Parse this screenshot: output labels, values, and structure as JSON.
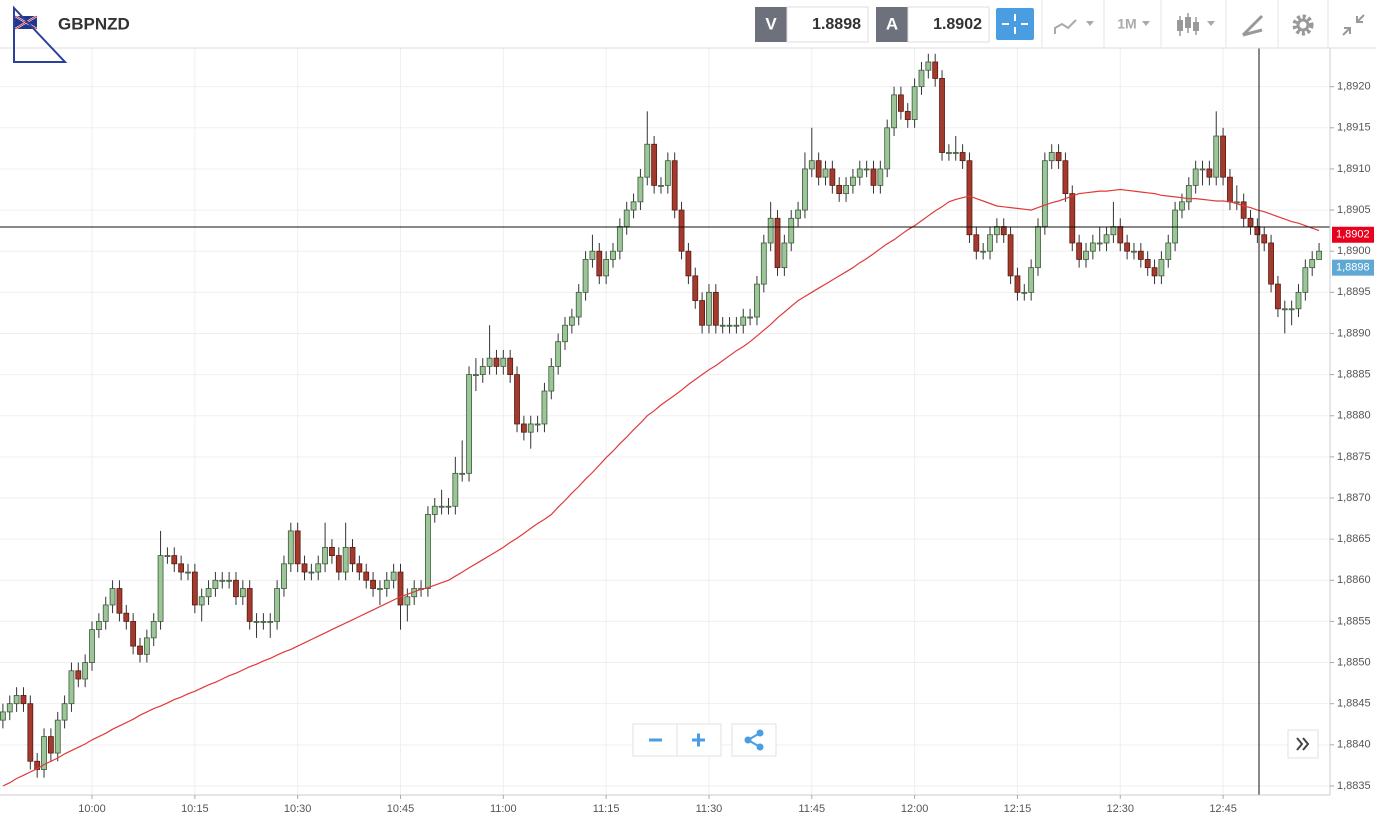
{
  "header": {
    "symbol": "GBPNZD",
    "bid_tag": "V",
    "bid": 1.8898,
    "ask_tag": "A",
    "ask": 1.8902,
    "interval": "1M"
  },
  "chart_data": {
    "type": "candlestick",
    "categories": [
      null,
      null,
      null,
      null,
      null,
      null,
      null,
      null,
      null,
      null,
      null,
      null,
      null,
      "10:00",
      null,
      null,
      null,
      null,
      null,
      null,
      null,
      null,
      null,
      null,
      null,
      null,
      null,
      null,
      "10:15",
      null,
      null,
      null,
      null,
      null,
      null,
      null,
      null,
      null,
      null,
      null,
      null,
      null,
      null,
      "10:30",
      null,
      null,
      null,
      null,
      null,
      null,
      null,
      null,
      null,
      null,
      null,
      null,
      null,
      null,
      "10:45",
      null,
      null,
      null,
      null,
      null,
      null,
      null,
      null,
      null,
      null,
      null,
      null,
      null,
      null,
      "11:00",
      null,
      null,
      null,
      null,
      null,
      null,
      null,
      null,
      null,
      null,
      null,
      null,
      null,
      null,
      "11:15",
      null,
      null,
      null,
      null,
      null,
      null,
      null,
      null,
      null,
      null,
      null,
      null,
      null,
      null,
      "11:30",
      null,
      null,
      null,
      null,
      null,
      null,
      null,
      null,
      null,
      null,
      null,
      null,
      null,
      null,
      "11:45",
      null,
      null,
      null,
      null,
      null,
      null,
      null,
      null,
      null,
      null,
      null,
      null,
      null,
      null,
      "12:00",
      null,
      null,
      null,
      null,
      null,
      null,
      null,
      null,
      null,
      null,
      null,
      null,
      null,
      null,
      "12:15",
      null,
      null,
      null,
      null,
      null,
      null,
      null,
      null,
      null,
      null,
      null,
      null,
      null,
      null,
      "12:30",
      null,
      null,
      null,
      null,
      null,
      null,
      null,
      null,
      null,
      null,
      null,
      null,
      null,
      null,
      "12:45",
      null,
      null,
      null,
      null,
      null,
      null,
      null,
      null,
      null,
      null,
      null,
      null,
      null,
      null
    ],
    "open": [
      1.8843,
      1.8844,
      1.8845,
      1.8846,
      1.8845,
      1.8838,
      1.8837,
      1.8841,
      1.8839,
      1.8843,
      1.8845,
      1.8849,
      1.8848,
      1.885,
      1.8854,
      1.8855,
      1.8857,
      1.8859,
      1.8856,
      1.8855,
      1.8852,
      1.8851,
      1.8853,
      1.8855,
      1.8863,
      1.8863,
      1.8862,
      1.8861,
      1.8861,
      1.8857,
      1.8858,
      1.8859,
      1.886,
      1.886,
      1.886,
      1.8858,
      1.8859,
      1.8855,
      1.8855,
      1.8855,
      1.8855,
      1.8859,
      1.8862,
      1.8866,
      1.8862,
      1.8861,
      1.8861,
      1.8862,
      1.8864,
      1.8863,
      1.8861,
      1.8864,
      1.8862,
      1.8861,
      1.886,
      1.8859,
      1.8859,
      1.886,
      1.8861,
      1.8857,
      1.8858,
      1.8859,
      1.8859,
      1.8868,
      1.8869,
      1.8869,
      1.8869,
      1.8873,
      1.8873,
      1.8885,
      1.8885,
      1.8886,
      1.8887,
      1.8886,
      1.8887,
      1.8885,
      1.8879,
      1.8878,
      1.8879,
      1.8879,
      1.8883,
      1.8886,
      1.8889,
      1.8891,
      1.8892,
      1.8895,
      1.8899,
      1.89,
      1.8897,
      1.8899,
      1.89,
      1.8903,
      1.8905,
      1.8906,
      1.8909,
      1.8913,
      1.8908,
      1.8908,
      1.8911,
      1.8905,
      1.89,
      1.8897,
      1.8894,
      1.8891,
      1.8895,
      1.8891,
      1.8891,
      1.8891,
      1.8891,
      1.8892,
      1.8892,
      1.8896,
      1.8901,
      1.8904,
      1.8898,
      1.8901,
      1.8904,
      1.8905,
      1.891,
      1.8911,
      1.8909,
      1.891,
      1.8908,
      1.8907,
      1.8908,
      1.8909,
      1.891,
      1.891,
      1.8908,
      1.891,
      1.8915,
      1.8919,
      1.8917,
      1.8916,
      1.892,
      1.8922,
      1.8923,
      1.8921,
      1.8912,
      1.8912,
      1.8912,
      1.8911,
      1.8902,
      1.89,
      1.89,
      1.8902,
      1.8903,
      1.8902,
      1.8897,
      1.8895,
      1.8895,
      1.8898,
      1.8903,
      1.8911,
      1.8912,
      1.8911,
      1.8907,
      1.8901,
      1.8899,
      1.89,
      1.8901,
      1.8901,
      1.8902,
      1.8903,
      1.8901,
      1.89,
      1.89,
      1.8899,
      1.8898,
      1.8897,
      1.8899,
      1.8901,
      1.8905,
      1.8906,
      1.8908,
      1.891,
      1.891,
      1.8909,
      1.8914,
      1.8909,
      1.8906,
      1.8906,
      1.8904,
      1.8903,
      1.8902,
      1.8901,
      1.8896,
      1.8893,
      1.8893,
      1.8893,
      1.8895,
      1.8898,
      1.8899
    ],
    "close": [
      1.8844,
      1.8845,
      1.8846,
      1.8845,
      1.8838,
      1.8837,
      1.8841,
      1.8839,
      1.8843,
      1.8845,
      1.8849,
      1.8848,
      1.885,
      1.8854,
      1.8855,
      1.8857,
      1.8859,
      1.8856,
      1.8855,
      1.8852,
      1.8851,
      1.8853,
      1.8855,
      1.8863,
      1.8863,
      1.8862,
      1.8861,
      1.8861,
      1.8857,
      1.8858,
      1.8859,
      1.886,
      1.886,
      1.886,
      1.8858,
      1.8859,
      1.8855,
      1.8855,
      1.8855,
      1.8855,
      1.8859,
      1.8862,
      1.8866,
      1.8862,
      1.8861,
      1.8861,
      1.8862,
      1.8864,
      1.8863,
      1.8861,
      1.8864,
      1.8862,
      1.8861,
      1.886,
      1.8859,
      1.8859,
      1.886,
      1.8861,
      1.8857,
      1.8858,
      1.8859,
      1.8859,
      1.8868,
      1.8869,
      1.8869,
      1.8869,
      1.8873,
      1.8873,
      1.8885,
      1.8885,
      1.8886,
      1.8887,
      1.8886,
      1.8887,
      1.8885,
      1.8879,
      1.8878,
      1.8879,
      1.8879,
      1.8883,
      1.8886,
      1.8889,
      1.8891,
      1.8892,
      1.8895,
      1.8899,
      1.89,
      1.8897,
      1.8899,
      1.89,
      1.8903,
      1.8905,
      1.8906,
      1.8909,
      1.8913,
      1.8908,
      1.8908,
      1.8911,
      1.8905,
      1.89,
      1.8897,
      1.8894,
      1.8891,
      1.8895,
      1.8891,
      1.8891,
      1.8891,
      1.8891,
      1.8892,
      1.8892,
      1.8896,
      1.8901,
      1.8904,
      1.8898,
      1.8901,
      1.8904,
      1.8905,
      1.891,
      1.8911,
      1.8909,
      1.891,
      1.8908,
      1.8907,
      1.8908,
      1.8909,
      1.891,
      1.891,
      1.8908,
      1.891,
      1.8915,
      1.8919,
      1.8917,
      1.8916,
      1.892,
      1.8922,
      1.8923,
      1.8921,
      1.8912,
      1.8912,
      1.8912,
      1.8911,
      1.8902,
      1.89,
      1.89,
      1.8902,
      1.8903,
      1.8902,
      1.8897,
      1.8895,
      1.8895,
      1.8898,
      1.8903,
      1.8911,
      1.8912,
      1.8911,
      1.8907,
      1.8901,
      1.8899,
      1.89,
      1.8901,
      1.8901,
      1.8902,
      1.8903,
      1.8901,
      1.89,
      1.89,
      1.8899,
      1.8898,
      1.8897,
      1.8899,
      1.8901,
      1.8905,
      1.8906,
      1.8908,
      1.891,
      1.891,
      1.8909,
      1.8914,
      1.8909,
      1.8906,
      1.8906,
      1.8904,
      1.8903,
      1.8902,
      1.8901,
      1.8896,
      1.8893,
      1.8893,
      1.8893,
      1.8895,
      1.8898,
      1.8899,
      1.89
    ],
    "high": [
      1.8845,
      1.8846,
      1.8847,
      1.8847,
      1.8846,
      1.8839,
      1.8842,
      1.8842,
      1.8844,
      1.8846,
      1.885,
      1.885,
      1.8851,
      1.8855,
      1.8856,
      1.8858,
      1.886,
      1.886,
      1.8857,
      1.8856,
      1.8853,
      1.8854,
      1.8856,
      1.8866,
      1.8864,
      1.8864,
      1.8863,
      1.8862,
      1.8862,
      1.8859,
      1.886,
      1.8861,
      1.8861,
      1.8861,
      1.8861,
      1.886,
      1.886,
      1.8856,
      1.8856,
      1.8856,
      1.886,
      1.8863,
      1.8867,
      1.8867,
      1.8863,
      1.8862,
      1.8863,
      1.8867,
      1.8865,
      1.8864,
      1.8867,
      1.8865,
      1.8863,
      1.8862,
      1.8861,
      1.886,
      1.8861,
      1.8862,
      1.8862,
      1.8859,
      1.886,
      1.886,
      1.8869,
      1.887,
      1.8871,
      1.887,
      1.8875,
      1.8877,
      1.8886,
      1.8887,
      1.8887,
      1.8891,
      1.8888,
      1.8888,
      1.8888,
      1.8886,
      1.888,
      1.888,
      1.888,
      1.8884,
      1.8887,
      1.889,
      1.8892,
      1.8893,
      1.8896,
      1.89,
      1.8902,
      1.8901,
      1.89,
      1.8901,
      1.8904,
      1.8906,
      1.8907,
      1.891,
      1.8917,
      1.8914,
      1.8909,
      1.8912,
      1.8912,
      1.8906,
      1.8901,
      1.8898,
      1.8895,
      1.8896,
      1.8896,
      1.8892,
      1.8892,
      1.8892,
      1.8893,
      1.8893,
      1.8897,
      1.8902,
      1.8906,
      1.8905,
      1.8902,
      1.8905,
      1.8906,
      1.8912,
      1.8915,
      1.8912,
      1.8911,
      1.8911,
      1.8909,
      1.8909,
      1.891,
      1.8911,
      1.8911,
      1.8911,
      1.8911,
      1.8916,
      1.892,
      1.892,
      1.8918,
      1.8921,
      1.8923,
      1.8924,
      1.8924,
      1.8922,
      1.8913,
      1.8914,
      1.8913,
      1.8912,
      1.8903,
      1.8901,
      1.8903,
      1.8904,
      1.8904,
      1.8903,
      1.8898,
      1.8896,
      1.8899,
      1.8904,
      1.8912,
      1.8913,
      1.8913,
      1.8912,
      1.8908,
      1.8902,
      1.8901,
      1.8902,
      1.8903,
      1.8903,
      1.8906,
      1.8904,
      1.8902,
      1.8901,
      1.8901,
      1.89,
      1.8899,
      1.89,
      1.8902,
      1.8906,
      1.8907,
      1.8909,
      1.8911,
      1.8911,
      1.8911,
      1.8917,
      1.8915,
      1.891,
      1.8908,
      1.8907,
      1.8905,
      1.8904,
      1.8903,
      1.8902,
      1.8897,
      1.8894,
      1.8894,
      1.8896,
      1.8899,
      1.89,
      1.8901
    ],
    "low": [
      1.8842,
      1.8843,
      1.8844,
      1.8844,
      1.8837,
      1.8836,
      1.8836,
      1.8838,
      1.8838,
      1.8842,
      1.8844,
      1.8847,
      1.8847,
      1.8849,
      1.8853,
      1.8854,
      1.8856,
      1.8855,
      1.8854,
      1.8851,
      1.885,
      1.885,
      1.8852,
      1.8854,
      1.8862,
      1.8861,
      1.886,
      1.886,
      1.8856,
      1.8855,
      1.8857,
      1.8858,
      1.8859,
      1.8859,
      1.8857,
      1.8857,
      1.8854,
      1.8853,
      1.8854,
      1.8853,
      1.8854,
      1.8858,
      1.8861,
      1.8861,
      1.886,
      1.886,
      1.886,
      1.8861,
      1.8862,
      1.886,
      1.886,
      1.8861,
      1.886,
      1.8859,
      1.8858,
      1.8857,
      1.8858,
      1.8859,
      1.8854,
      1.8855,
      1.8857,
      1.8858,
      1.8858,
      1.8867,
      1.8868,
      1.8868,
      1.8868,
      1.8872,
      1.8872,
      1.8883,
      1.8884,
      1.8885,
      1.8885,
      1.8885,
      1.8884,
      1.8878,
      1.8877,
      1.8876,
      1.8878,
      1.8878,
      1.8882,
      1.8885,
      1.8888,
      1.889,
      1.8891,
      1.8894,
      1.8898,
      1.8896,
      1.8896,
      1.8898,
      1.8899,
      1.8902,
      1.8904,
      1.8905,
      1.8908,
      1.8907,
      1.8907,
      1.8907,
      1.8904,
      1.8899,
      1.8896,
      1.8893,
      1.889,
      1.889,
      1.889,
      1.889,
      1.889,
      1.889,
      1.889,
      1.8891,
      1.8891,
      1.8895,
      1.89,
      1.8897,
      1.8897,
      1.89,
      1.8903,
      1.8904,
      1.8909,
      1.8908,
      1.8908,
      1.8907,
      1.8906,
      1.8906,
      1.8907,
      1.8908,
      1.8909,
      1.8907,
      1.8907,
      1.8909,
      1.8914,
      1.8916,
      1.8915,
      1.8915,
      1.8919,
      1.8921,
      1.892,
      1.8911,
      1.8911,
      1.8911,
      1.891,
      1.8901,
      1.8899,
      1.8899,
      1.8899,
      1.8901,
      1.8901,
      1.8896,
      1.8894,
      1.8894,
      1.8894,
      1.8897,
      1.8902,
      1.891,
      1.891,
      1.8906,
      1.89,
      1.8898,
      1.8898,
      1.8899,
      1.89,
      1.89,
      1.8901,
      1.89,
      1.8899,
      1.8899,
      1.8898,
      1.8897,
      1.8896,
      1.8896,
      1.8898,
      1.89,
      1.8904,
      1.8905,
      1.8907,
      1.8908,
      1.8908,
      1.8908,
      1.8908,
      1.8905,
      1.8905,
      1.8903,
      1.8902,
      1.8901,
      1.89,
      1.8895,
      1.8892,
      1.889,
      1.8891,
      1.8892,
      1.8894,
      1.8897,
      1.8899
    ],
    "up_color": "#9cc598",
    "down_color": "#a33a2e",
    "moving_average": {
      "color": "#e03a3a",
      "values": [
        1.8835,
        1.88354,
        1.88359,
        1.88363,
        1.88367,
        1.88371,
        1.88376,
        1.8838,
        1.88384,
        1.88389,
        1.88393,
        1.88397,
        1.88401,
        1.88406,
        1.8841,
        1.88414,
        1.88419,
        1.88423,
        1.88427,
        1.88431,
        1.88436,
        1.8844,
        1.88444,
        1.88447,
        1.88451,
        1.88455,
        1.88458,
        1.88462,
        1.88465,
        1.88469,
        1.88473,
        1.88476,
        1.8848,
        1.88484,
        1.88487,
        1.88491,
        1.88495,
        1.88498,
        1.88502,
        1.88505,
        1.88509,
        1.88513,
        1.88516,
        1.8852,
        1.88524,
        1.88528,
        1.88532,
        1.88536,
        1.8854,
        1.88544,
        1.88548,
        1.88552,
        1.88556,
        1.8856,
        1.88564,
        1.88568,
        1.88572,
        1.88576,
        1.8858,
        1.88583,
        1.88586,
        1.88589,
        1.88591,
        1.88594,
        1.88597,
        1.886,
        1.88605,
        1.8861,
        1.88615,
        1.8862,
        1.88625,
        1.8863,
        1.88635,
        1.8864,
        1.88646,
        1.88651,
        1.88657,
        1.88663,
        1.88669,
        1.88674,
        1.8868,
        1.88689,
        1.88697,
        1.88706,
        1.88714,
        1.88723,
        1.88731,
        1.8874,
        1.88749,
        1.88757,
        1.88766,
        1.88774,
        1.88783,
        1.88791,
        1.888,
        1.88806,
        1.88813,
        1.88819,
        1.88825,
        1.88831,
        1.88838,
        1.88844,
        1.8885,
        1.88856,
        1.88861,
        1.88867,
        1.88873,
        1.88879,
        1.88884,
        1.8889,
        1.88897,
        1.88904,
        1.88911,
        1.88919,
        1.88926,
        1.88933,
        1.8894,
        1.88945,
        1.8895,
        1.88955,
        1.8896,
        1.88965,
        1.8897,
        1.88975,
        1.8898,
        1.88986,
        1.88991,
        1.88997,
        1.89003,
        1.89009,
        1.89014,
        1.8902,
        1.89026,
        1.89031,
        1.89037,
        1.89043,
        1.89049,
        1.89054,
        1.8906,
        1.89063,
        1.89065,
        1.89067,
        1.89064,
        1.89061,
        1.89058,
        1.89055,
        1.89054,
        1.89053,
        1.89052,
        1.89051,
        1.8905,
        1.89053,
        1.89056,
        1.89059,
        1.89061,
        1.89064,
        1.89067,
        1.8907,
        1.89071,
        1.89072,
        1.89073,
        1.89073,
        1.89074,
        1.89075,
        1.89074,
        1.89073,
        1.89072,
        1.89071,
        1.8907,
        1.89068,
        1.89067,
        1.89066,
        1.89065,
        1.89064,
        1.89064,
        1.89063,
        1.89062,
        1.89061,
        1.89061,
        1.8906,
        1.89058,
        1.89055,
        1.89053,
        1.8905,
        1.89048,
        1.89045,
        1.89042,
        1.89039,
        1.89036,
        1.89034,
        1.89031,
        1.89028,
        1.89025
      ]
    },
    "ylim": [
      1.88339,
      1.89247
    ],
    "yticks": [
      {
        "value": 1.8835,
        "label": "1,8835"
      },
      {
        "value": 1.884,
        "label": "1,8840"
      },
      {
        "value": 1.8845,
        "label": "1,8845"
      },
      {
        "value": 1.885,
        "label": "1,8850"
      },
      {
        "value": 1.8855,
        "label": "1,8855"
      },
      {
        "value": 1.886,
        "label": "1,8860"
      },
      {
        "value": 1.8865,
        "label": "1,8865"
      },
      {
        "value": 1.887,
        "label": "1,8870"
      },
      {
        "value": 1.8875,
        "label": "1,8875"
      },
      {
        "value": 1.888,
        "label": "1,8880"
      },
      {
        "value": 1.8885,
        "label": "1,8885"
      },
      {
        "value": 1.889,
        "label": "1,8890"
      },
      {
        "value": 1.8895,
        "label": "1,8895"
      },
      {
        "value": 1.89,
        "label": "1,8900"
      },
      {
        "value": 1.8905,
        "label": "1,8905"
      },
      {
        "value": 1.891,
        "label": "1,8910"
      },
      {
        "value": 1.8915,
        "label": "1,8915"
      },
      {
        "value": 1.892,
        "label": "1,8920"
      }
    ],
    "grid": true,
    "price_labels": [
      {
        "value": 1.8902,
        "label": "1,8902",
        "color": "#e8001c"
      },
      {
        "value": 1.8898,
        "label": "1,8898",
        "color": "#5fa8d3"
      }
    ]
  }
}
